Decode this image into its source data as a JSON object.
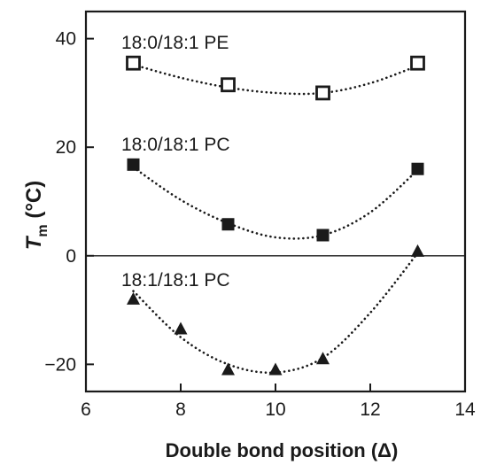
{
  "chart_data": {
    "type": "scatter",
    "xlabel": "Double bond position (Δ)",
    "ylabel_main": "T",
    "ylabel_sub": "m",
    "ylabel_unit": " (°C)",
    "xlim": [
      6,
      14
    ],
    "ylim": [
      -25,
      45
    ],
    "xticks": [
      "6",
      "8",
      "10",
      "12",
      "14"
    ],
    "yticks": [
      "40",
      "20",
      "0",
      "−20"
    ],
    "grid": false,
    "zero_line": true,
    "series": [
      {
        "name": "18:0/18:1 PE",
        "marker": "open-square",
        "x": [
          7,
          9,
          11,
          13
        ],
        "y": [
          35.5,
          31.5,
          30,
          35.5
        ],
        "fit_curve": [
          [
            7,
            35.2
          ],
          [
            8,
            32.8
          ],
          [
            9,
            31.0
          ],
          [
            10,
            30.0
          ],
          [
            11,
            30.0
          ],
          [
            12,
            31.8
          ],
          [
            13,
            35.0
          ]
        ]
      },
      {
        "name": "18:0/18:1 PC",
        "marker": "filled-square",
        "x": [
          7,
          9,
          11,
          13
        ],
        "y": [
          16.8,
          5.8,
          3.8,
          16.0
        ],
        "fit_curve": [
          [
            7,
            16.3
          ],
          [
            8,
            10.3
          ],
          [
            9,
            6.0
          ],
          [
            10,
            3.4
          ],
          [
            11,
            3.8
          ],
          [
            12,
            8.0
          ],
          [
            13,
            15.8
          ]
        ]
      },
      {
        "name": "18:1/18:1 PC",
        "marker": "filled-triangle",
        "x": [
          7,
          8,
          9,
          10,
          11,
          13
        ],
        "y": [
          -8,
          -13.5,
          -21,
          -21,
          -19,
          0.8
        ],
        "fit_curve": [
          [
            7,
            -6.5
          ],
          [
            8,
            -15.0
          ],
          [
            9,
            -20.0
          ],
          [
            10,
            -21.5
          ],
          [
            11,
            -18.8
          ],
          [
            12,
            -10.5
          ],
          [
            13,
            0.5
          ]
        ]
      }
    ]
  }
}
